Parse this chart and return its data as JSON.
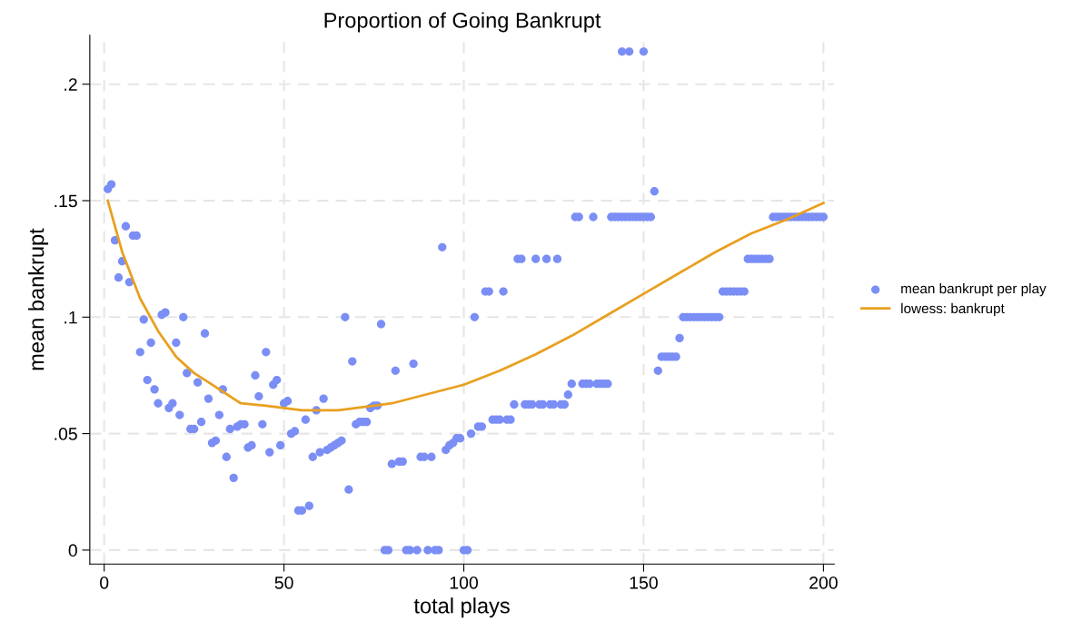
{
  "chart_data": {
    "type": "scatter",
    "title": "Proportion of Going Bankrupt",
    "xlabel": "total plays",
    "ylabel": "mean bankrupt",
    "xlim": [
      -4,
      203
    ],
    "ylim": [
      -0.006,
      0.221
    ],
    "xticks": [
      0,
      50,
      100,
      150,
      200
    ],
    "yticks": [
      {
        "value": 0,
        "label": "0"
      },
      {
        "value": 0.05,
        "label": ".05"
      },
      {
        "value": 0.1,
        "label": ".1"
      },
      {
        "value": 0.15,
        "label": ".15"
      },
      {
        "value": 0.2,
        "label": ".2"
      }
    ],
    "grid": true,
    "legend": "right",
    "marker": "circle",
    "series": [
      {
        "name": "mean bankrupt per play",
        "color": "#7b8ef5",
        "x": [
          1,
          2,
          3,
          4,
          5,
          6,
          7,
          8,
          9,
          10,
          11,
          12,
          13,
          14,
          15,
          16,
          17,
          18,
          19,
          20,
          21,
          22,
          23,
          24,
          25,
          26,
          27,
          28,
          29,
          30,
          31,
          32,
          33,
          34,
          35,
          36,
          37,
          38,
          39,
          40,
          41,
          42,
          43,
          44,
          45,
          46,
          47,
          48,
          49,
          50,
          51,
          52,
          53,
          54,
          55,
          56,
          57,
          58,
          59,
          60,
          61,
          62,
          63,
          64,
          65,
          66,
          67,
          68,
          69,
          70,
          71,
          72,
          73,
          74,
          75,
          76,
          77,
          78,
          79,
          80,
          81,
          82,
          83,
          84,
          85,
          86,
          87,
          88,
          89,
          90,
          91,
          92,
          93,
          94,
          95,
          96,
          97,
          98,
          99,
          100,
          101,
          102,
          103,
          104,
          105,
          106,
          107,
          108,
          109,
          110,
          111,
          112,
          113,
          114,
          115,
          116,
          117,
          118,
          119,
          120,
          121,
          122,
          123,
          124,
          125,
          126,
          127,
          128,
          129,
          130,
          131,
          132,
          133,
          134,
          135,
          136,
          137,
          138,
          139,
          140,
          141,
          142,
          143,
          144,
          145,
          146,
          147,
          148,
          149,
          150,
          151,
          152,
          153,
          154,
          155,
          156,
          157,
          158,
          159,
          160,
          161,
          162,
          163,
          164,
          165,
          166,
          167,
          168,
          169,
          170,
          171,
          172,
          173,
          174,
          175,
          176,
          177,
          178,
          179,
          180,
          181,
          182,
          183,
          184,
          185,
          186,
          187,
          188,
          189,
          190,
          191,
          192,
          193,
          194,
          195,
          196,
          197,
          198,
          199,
          200,
          144,
          146,
          150
        ],
        "values": [
          0.155,
          0.157,
          0.133,
          0.117,
          0.124,
          0.139,
          0.115,
          0.135,
          0.135,
          0.085,
          0.099,
          0.073,
          0.089,
          0.069,
          0.063,
          0.101,
          0.102,
          0.061,
          0.063,
          0.089,
          0.058,
          0.1,
          0.076,
          0.052,
          0.052,
          0.072,
          0.055,
          0.093,
          0.065,
          0.046,
          0.047,
          0.058,
          0.069,
          0.04,
          0.052,
          0.031,
          0.053,
          0.054,
          0.054,
          0.044,
          0.045,
          0.075,
          0.066,
          0.054,
          0.085,
          0.042,
          0.071,
          0.073,
          0.045,
          0.063,
          0.064,
          0.05,
          0.051,
          0.017,
          0.017,
          0.056,
          0.019,
          0.04,
          0.06,
          0.042,
          0.065,
          0.043,
          0.044,
          0.045,
          0.046,
          0.047,
          0.1,
          0.026,
          0.081,
          0.054,
          0.055,
          0.055,
          0.055,
          0.061,
          0.062,
          0.062,
          0.097,
          0,
          0,
          0.037,
          0.077,
          0.038,
          0.038,
          0,
          0,
          0.08,
          0,
          0.04,
          0.04,
          0,
          0.04,
          0,
          0,
          0.13,
          0.043,
          0.045,
          0.046,
          0.048,
          0.048,
          0,
          0,
          0.05,
          0.1,
          0.053,
          0.053,
          0.111,
          0.111,
          0.056,
          0.056,
          0.056,
          0.111,
          0.056,
          0.056,
          0.0625,
          0.125,
          0.125,
          0.0625,
          0.0625,
          0.0625,
          0.125,
          0.0625,
          0.0625,
          0.125,
          0.0625,
          0.0625,
          0.125,
          0.0625,
          0.0625,
          0.0667,
          0.0714,
          0.143,
          0.143,
          0.0714,
          0.0714,
          0.0714,
          0.143,
          0.0714,
          0.0714,
          0.0714,
          0.0714,
          0.143,
          0.143,
          0.143,
          0.143,
          0.143,
          0.143,
          0.143,
          0.143,
          0.143,
          0.143,
          0.143,
          0.143,
          0.154,
          0.077,
          0.083,
          0.083,
          0.083,
          0.083,
          0.083,
          0.091,
          0.1,
          0.1,
          0.1,
          0.1,
          0.1,
          0.1,
          0.1,
          0.1,
          0.1,
          0.1,
          0.1,
          0.111,
          0.111,
          0.111,
          0.111,
          0.111,
          0.111,
          0.111,
          0.125,
          0.125,
          0.125,
          0.125,
          0.125,
          0.125,
          0.125,
          0.143,
          0.143,
          0.143,
          0.143,
          0.143,
          0.143,
          0.143,
          0.143,
          0.143,
          0.143,
          0.143,
          0.143,
          0.143,
          0.143,
          0.143,
          0.214,
          0.214,
          0.214
        ]
      },
      {
        "name": "lowess: bankrupt",
        "type": "line",
        "color": "#e8a020",
        "marker": "none",
        "x": [
          1,
          5,
          10,
          15,
          20,
          25,
          30,
          35,
          38,
          45,
          50,
          55,
          60,
          65,
          70,
          75,
          80,
          90,
          100,
          110,
          120,
          130,
          140,
          150,
          160,
          170,
          180,
          190,
          200
        ],
        "values": [
          0.15,
          0.128,
          0.108,
          0.094,
          0.083,
          0.076,
          0.071,
          0.066,
          0.063,
          0.062,
          0.061,
          0.06,
          0.06,
          0.06,
          0.061,
          0.062,
          0.063,
          0.067,
          0.071,
          0.077,
          0.084,
          0.092,
          0.101,
          0.11,
          0.119,
          0.128,
          0.136,
          0.142,
          0.149
        ]
      }
    ]
  }
}
